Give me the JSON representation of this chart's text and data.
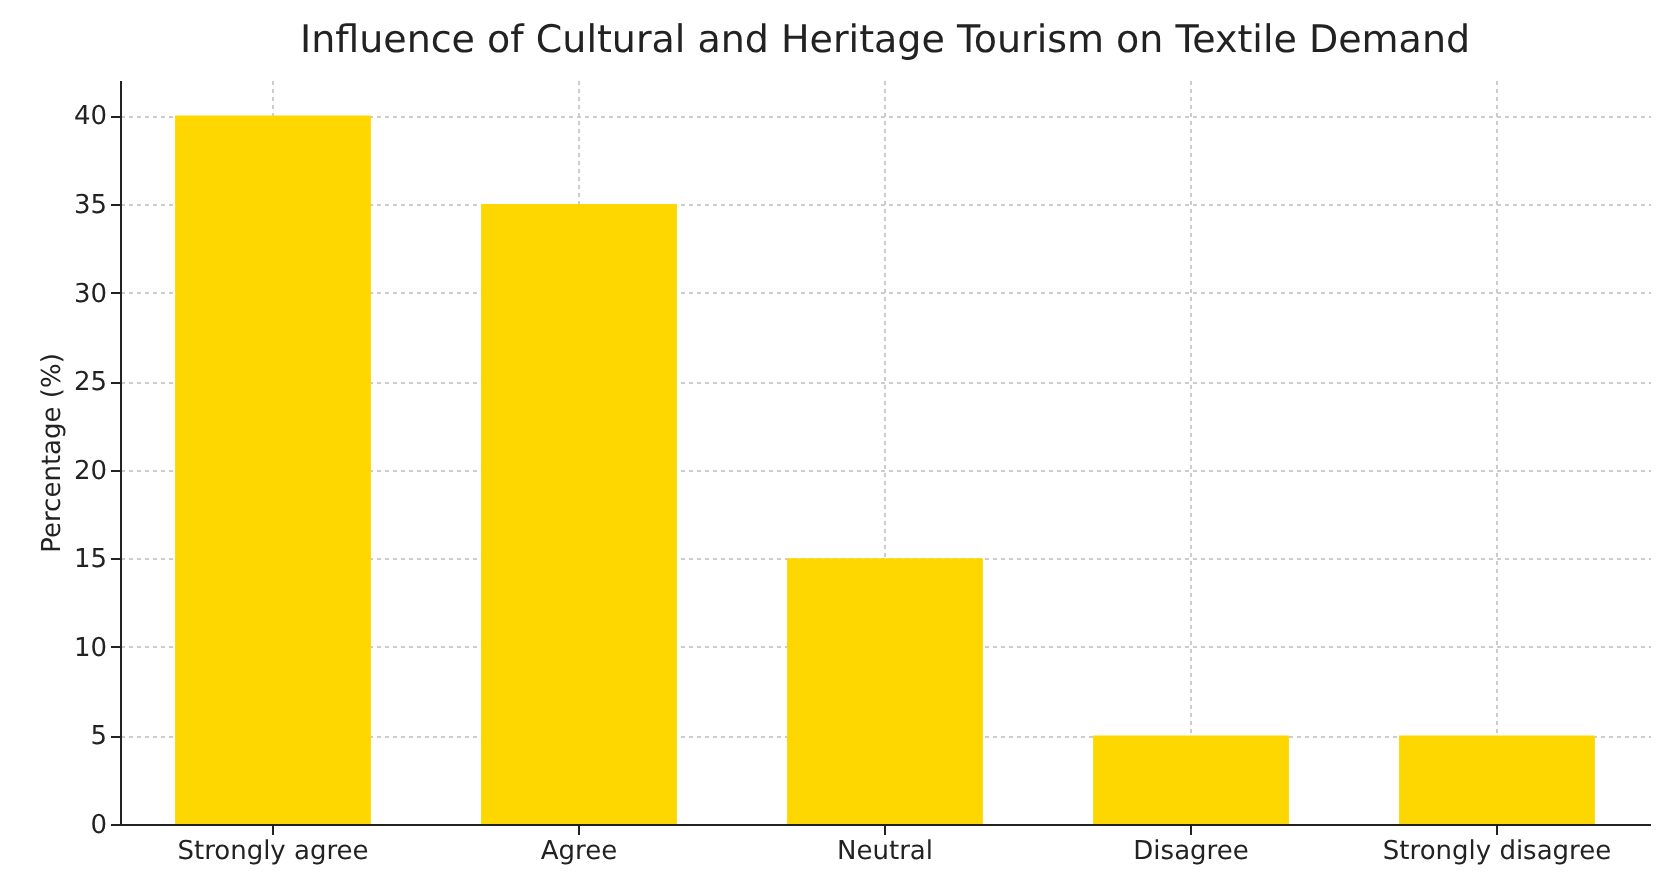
{
  "chart_data": {
    "type": "bar",
    "title": "Influence of Cultural and Heritage Tourism on Textile Demand",
    "ylabel": "Percentage (%)",
    "categories": [
      "Strongly agree",
      "Agree",
      "Neutral",
      "Disagree",
      "Strongly disagree"
    ],
    "values": [
      40,
      35,
      15,
      5,
      5
    ],
    "color": "#ffd700",
    "ylim": [
      0,
      42
    ],
    "yticks": [
      0,
      5,
      10,
      15,
      20,
      25,
      30,
      35,
      40
    ],
    "grid": true
  }
}
